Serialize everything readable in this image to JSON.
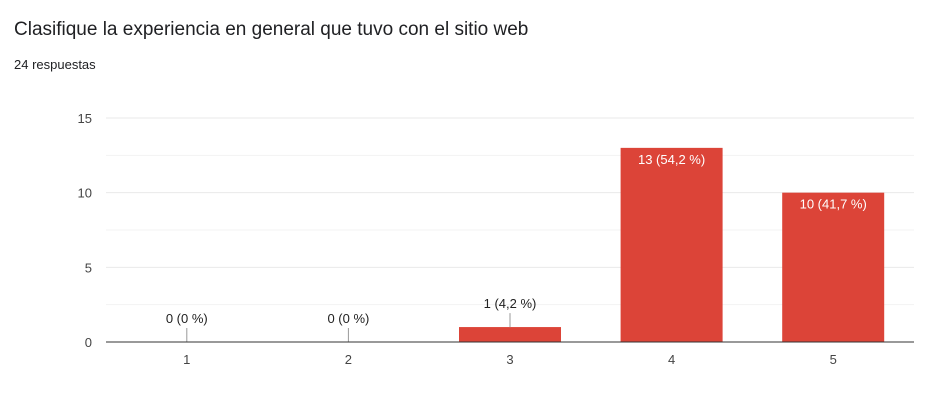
{
  "header": {
    "title": "Clasifique la experiencia en general que tuvo con el sitio web",
    "subtitle": "24 respuestas"
  },
  "chart_data": {
    "type": "bar",
    "title": "",
    "xlabel": "",
    "ylabel": "",
    "categories": [
      "1",
      "2",
      "3",
      "4",
      "5"
    ],
    "values": [
      0,
      0,
      1,
      13,
      10
    ],
    "data_labels": [
      "0 (0 %)",
      "0 (0 %)",
      "1 (4,2 %)",
      "13 (54,2 %)",
      "10 (41,7 %)"
    ],
    "ylim": [
      0,
      15
    ],
    "y_ticks": [
      0,
      5,
      10,
      15
    ],
    "grid": true,
    "bar_color": "#dc4438",
    "grid_color": "#e9e9e9",
    "axis_color": "#333333",
    "legend": "none"
  }
}
